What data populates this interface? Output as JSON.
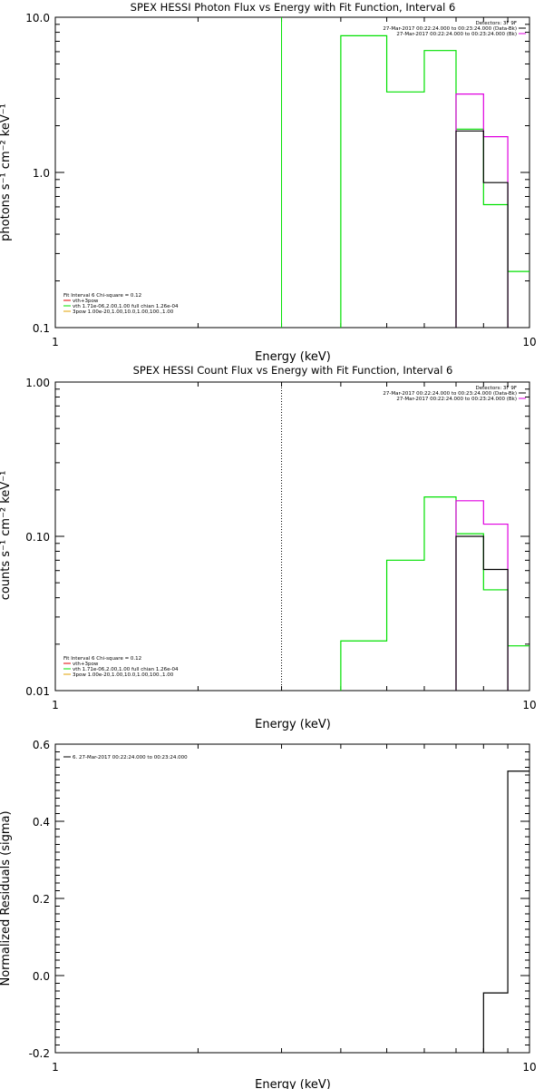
{
  "colors": {
    "axis": "#000000",
    "green": "#00e000",
    "magenta": "#e000e0",
    "black": "#000000",
    "red": "#e00000",
    "orange": "#e0a000"
  },
  "chart_data": [
    {
      "type": "line",
      "title": "SPEX HESSI Photon Flux vs Energy with Fit Function, Interval 6",
      "xlabel": "Energy (keV)",
      "ylabel": "photons s⁻¹ cm⁻² keV⁻¹",
      "xscale": "log",
      "yscale": "log",
      "xlim": [
        1,
        10
      ],
      "ylim": [
        0.1,
        10
      ],
      "xticks": [
        {
          "v": 1,
          "label": "1"
        },
        {
          "v": 10,
          "label": "10"
        }
      ],
      "yticks": [
        {
          "v": 0.1,
          "label": "0.1"
        },
        {
          "v": 1,
          "label": "1.0"
        },
        {
          "v": 10,
          "label": "10.0"
        }
      ],
      "vline": {
        "x": 3,
        "style": "solid",
        "color": "green"
      },
      "legend_top": [
        "Detectors: 3F 9F",
        "27-Mar-2017 00:22:24.000 to 00:23:24.000 (Data-Bk)",
        "27-Mar-2017 00:22:24.000 to 00:23:24.000 (Bk)"
      ],
      "legend_top_colors": [
        "black",
        "black",
        "magenta"
      ],
      "legend_bottom": [
        "Fit Interval 6   Chi-square = 0.12",
        "vth+3pow",
        "vth 1.71e-06,2.00,1.00  full chian 1.26e-04",
        "3pow 1.00e-20,1.00,10.0,1.00,100.,1.00"
      ],
      "legend_bottom_colors": [
        "black",
        "red",
        "green",
        "orange"
      ],
      "series": [
        {
          "color": "green",
          "edges": [
            4,
            5,
            6,
            7,
            8,
            9,
            10
          ],
          "values": [
            7.6,
            3.3,
            6.1,
            1.9,
            0.62,
            0.23
          ],
          "clip_at_top": true
        },
        {
          "color": "magenta",
          "edges": [
            7,
            8,
            9
          ],
          "values": [
            3.2,
            1.7
          ]
        },
        {
          "color": "black",
          "edges": [
            7,
            8,
            9
          ],
          "values": [
            1.85,
            0.86
          ]
        }
      ]
    },
    {
      "type": "line",
      "title": "SPEX HESSI Count Flux vs Energy with Fit Function, Interval 6",
      "xlabel": "Energy (keV)",
      "ylabel": "counts s⁻¹ cm⁻² keV⁻¹",
      "xscale": "log",
      "yscale": "log",
      "xlim": [
        1,
        10
      ],
      "ylim": [
        0.01,
        1
      ],
      "xticks": [
        {
          "v": 1,
          "label": "1"
        },
        {
          "v": 10,
          "label": "10"
        }
      ],
      "yticks": [
        {
          "v": 0.01,
          "label": "0.01"
        },
        {
          "v": 0.1,
          "label": "0.10"
        },
        {
          "v": 1,
          "label": "1.00"
        }
      ],
      "vline": {
        "x": 3,
        "style": "dotted",
        "color": "black"
      },
      "legend_top": [
        "Detectors: 3F 9F",
        "27-Mar-2017 00:22:24.000 to 00:23:24.000 (Data-Bk)",
        "27-Mar-2017 00:22:24.000 to 00:23:24.000 (Bk)"
      ],
      "legend_top_colors": [
        "black",
        "black",
        "magenta"
      ],
      "legend_bottom": [
        "Fit Interval 6   Chi-square = 0.12",
        "vth+3pow",
        "vth 1.71e-06,2.00,1.00  full chian 1.26e-04",
        "3pow 1.00e-20,1.00,10.0,1.00,100.,1.00"
      ],
      "legend_bottom_colors": [
        "black",
        "red",
        "green",
        "orange"
      ],
      "series": [
        {
          "color": "green",
          "edges": [
            4,
            5,
            6,
            7,
            8,
            9,
            10
          ],
          "values": [
            0.021,
            0.07,
            0.18,
            0.104,
            0.045,
            0.0195
          ]
        },
        {
          "color": "magenta",
          "edges": [
            7,
            8,
            9
          ],
          "values": [
            0.17,
            0.12
          ]
        },
        {
          "color": "black",
          "edges": [
            7,
            8,
            9
          ],
          "values": [
            0.1,
            0.061
          ]
        }
      ]
    },
    {
      "type": "line",
      "title": "",
      "xlabel": "Energy (keV)",
      "ylabel": "Normalized Residuals (sigma)",
      "xscale": "log",
      "yscale": "linear",
      "xlim": [
        1,
        10
      ],
      "ylim": [
        -0.2,
        0.6
      ],
      "xticks": [
        {
          "v": 1,
          "label": "1"
        },
        {
          "v": 10,
          "label": "10"
        }
      ],
      "yticks": [
        {
          "v": -0.2,
          "label": "-0.2"
        },
        {
          "v": 0,
          "label": "0.0"
        },
        {
          "v": 0.2,
          "label": "0.2"
        },
        {
          "v": 0.4,
          "label": "0.4"
        },
        {
          "v": 0.6,
          "label": "0.6"
        }
      ],
      "legend_top_left": "6. 27-Mar-2017 00:22:24.000 to 00:23:24.000",
      "series": [
        {
          "color": "black",
          "edges": [
            8,
            9,
            10
          ],
          "values": [
            -0.045,
            0.53
          ]
        }
      ]
    }
  ]
}
